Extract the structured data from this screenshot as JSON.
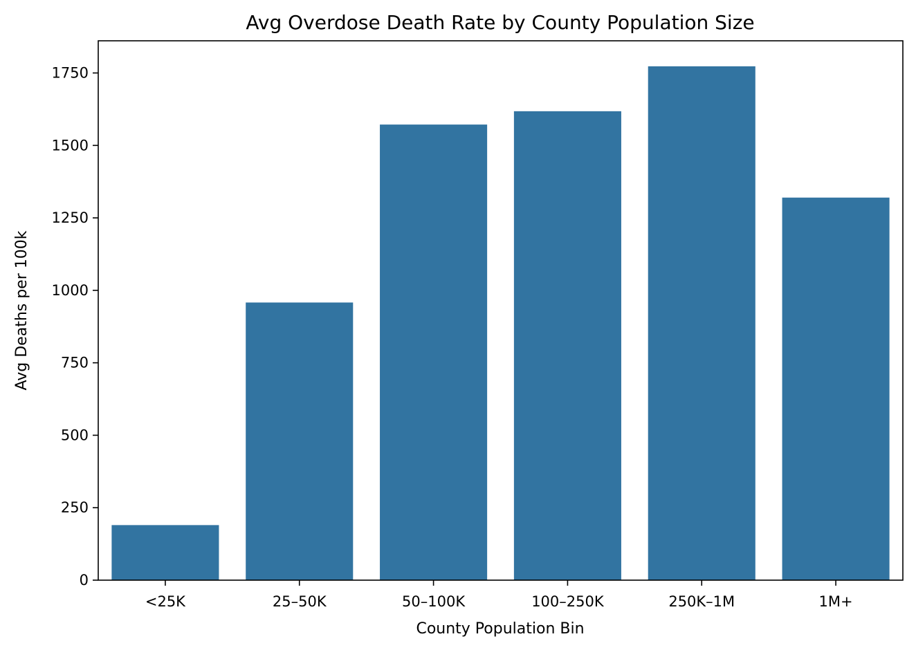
{
  "chart_data": {
    "type": "bar",
    "title": "Avg Overdose Death Rate by County Population Size",
    "xlabel": "County Population Bin",
    "ylabel": "Avg Deaths per 100k",
    "categories": [
      "<25K",
      "25–50K",
      "50–100K",
      "100–250K",
      "250K–1M",
      "1M+"
    ],
    "values": [
      190,
      958,
      1572,
      1618,
      1773,
      1320
    ],
    "ylim": [
      0,
      1861
    ],
    "yticks": [
      0,
      250,
      500,
      750,
      1000,
      1250,
      1500,
      1750
    ],
    "grid": false,
    "legend": "none",
    "colors": {
      "bar": "#3274a1",
      "axis": "#000000",
      "background": "#ffffff"
    }
  }
}
